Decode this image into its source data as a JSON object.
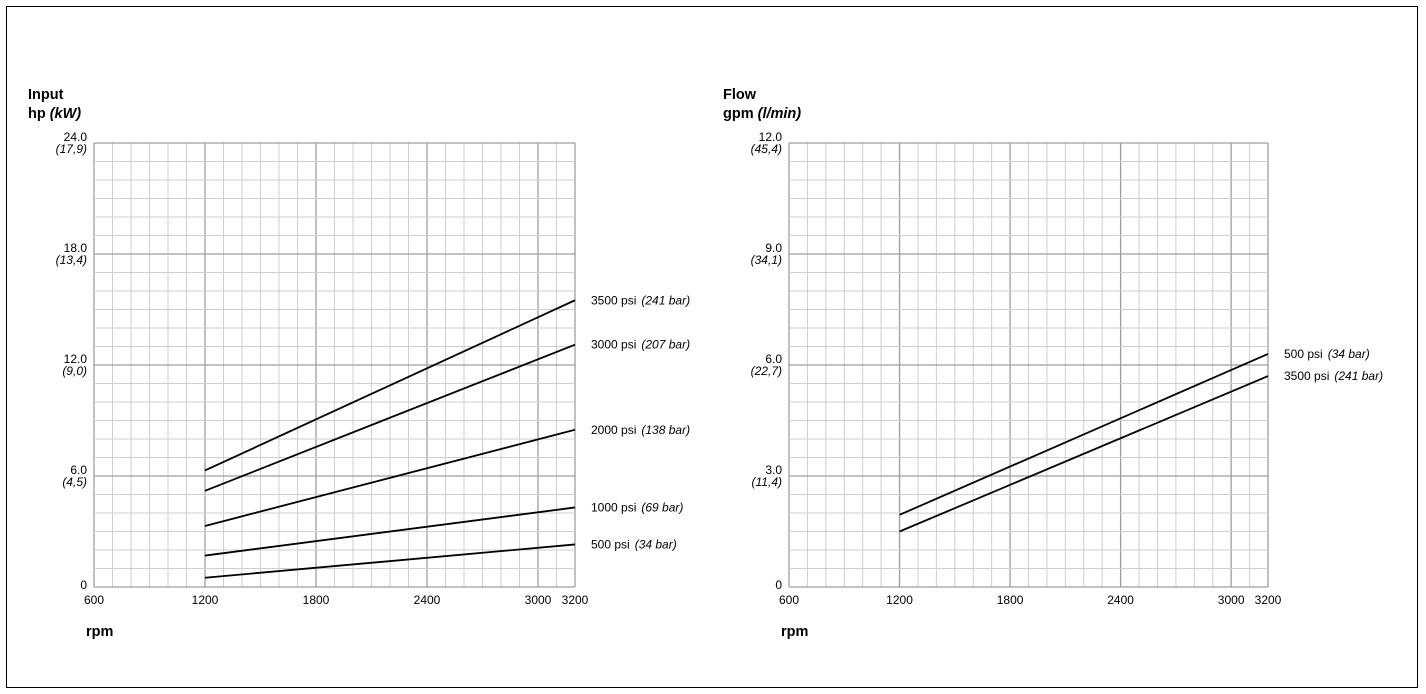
{
  "chart_data": [
    {
      "type": "line",
      "ylabel": {
        "line1": "Input",
        "line2_primary": "hp",
        "line2_secondary": "(kW)"
      },
      "xlabel": "rpm",
      "xlim": [
        600,
        3200
      ],
      "ylim": [
        0,
        24
      ],
      "grid": true,
      "legend": "inline-right",
      "x_ticks": [
        "600",
        "1200",
        "1800",
        "2400",
        "3000",
        "3200"
      ],
      "y_ticks": [
        {
          "value": 24,
          "primary": "24.0",
          "secondary": "(17,9)"
        },
        {
          "value": 18,
          "primary": "18.0",
          "secondary": "(13,4)"
        },
        {
          "value": 12,
          "primary": "12.0",
          "secondary": "(9,0)"
        },
        {
          "value": 6,
          "primary": "6.0",
          "secondary": "(4,5)"
        },
        {
          "value": 0,
          "primary": "0",
          "secondary": ""
        }
      ],
      "series": [
        {
          "name": "3500 psi",
          "name_unit": "(241 bar)",
          "x": [
            1200,
            3200
          ],
          "y": [
            6.3,
            15.5
          ]
        },
        {
          "name": "3000 psi",
          "name_unit": "(207 bar)",
          "x": [
            1200,
            3200
          ],
          "y": [
            5.2,
            13.1
          ]
        },
        {
          "name": "2000 psi",
          "name_unit": "(138 bar)",
          "x": [
            1200,
            3200
          ],
          "y": [
            3.3,
            8.5
          ]
        },
        {
          "name": "1000 psi",
          "name_unit": "(69 bar)",
          "x": [
            1200,
            3200
          ],
          "y": [
            1.7,
            4.3
          ]
        },
        {
          "name": "500 psi",
          "name_unit": "(34 bar)",
          "x": [
            1200,
            3200
          ],
          "y": [
            0.5,
            2.3
          ]
        }
      ]
    },
    {
      "type": "line",
      "ylabel": {
        "line1": "Flow",
        "line2_primary": "gpm",
        "line2_secondary": "(l/min)"
      },
      "xlabel": "rpm",
      "xlim": [
        600,
        3200
      ],
      "ylim": [
        0,
        12
      ],
      "grid": true,
      "legend": "inline-right",
      "x_ticks": [
        "600",
        "1200",
        "1800",
        "2400",
        "3000",
        "3200"
      ],
      "y_ticks": [
        {
          "value": 12,
          "primary": "12.0",
          "secondary": "(45,4)"
        },
        {
          "value": 9,
          "primary": "9.0",
          "secondary": "(34,1)"
        },
        {
          "value": 6,
          "primary": "6.0",
          "secondary": "(22,7)"
        },
        {
          "value": 3,
          "primary": "3.0",
          "secondary": "(11,4)"
        },
        {
          "value": 0,
          "primary": "0",
          "secondary": ""
        }
      ],
      "series": [
        {
          "name": "500 psi",
          "name_unit": "(34 bar)",
          "x": [
            1200,
            3200
          ],
          "y": [
            1.95,
            6.3
          ]
        },
        {
          "name": "3500 psi",
          "name_unit": "(241 bar)",
          "x": [
            1200,
            3200
          ],
          "y": [
            1.5,
            5.7
          ]
        }
      ]
    }
  ]
}
